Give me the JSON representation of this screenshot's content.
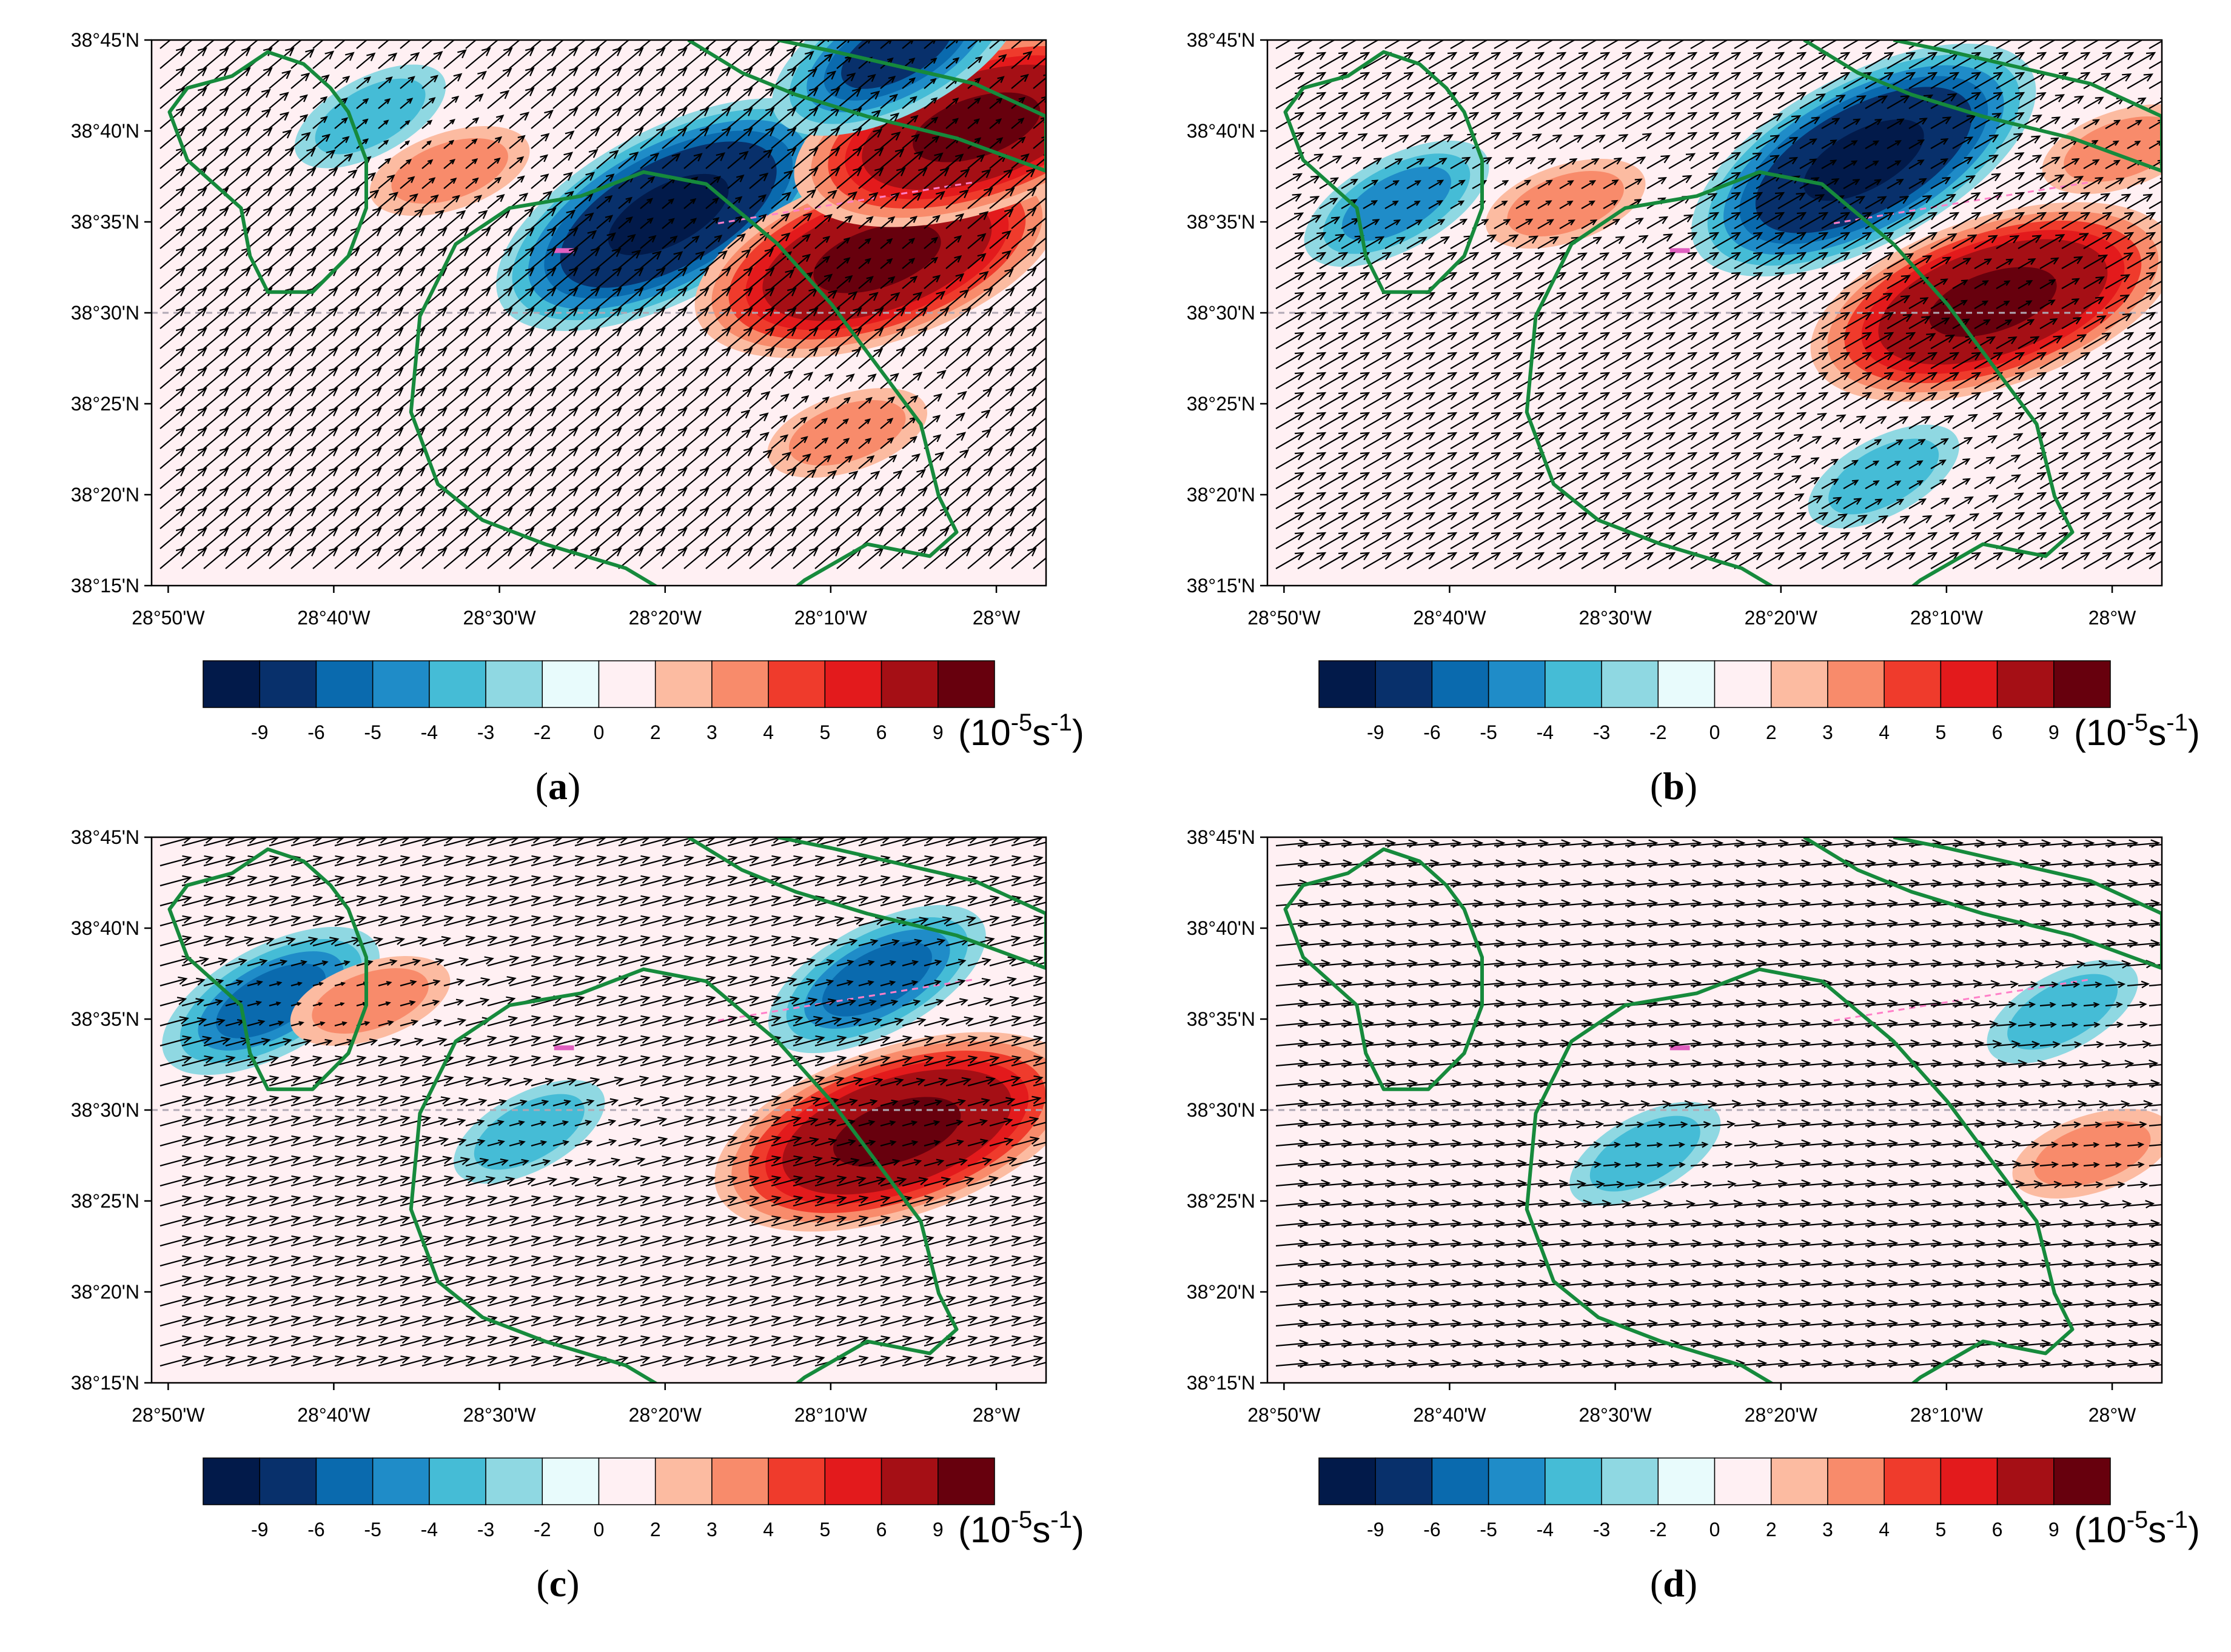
{
  "figure": {
    "colorbar": {
      "colors": [
        "#021a4a",
        "#08306b",
        "#0a6aae",
        "#1f8cc8",
        "#45bcd6",
        "#8fd8e2",
        "#e8fbfc",
        "#fff0f3",
        "#fcbba1",
        "#f88b6b",
        "#ef3b2c",
        "#e31a1c",
        "#a50f15",
        "#67000d"
      ],
      "tick_labels": [
        "-9",
        "-6",
        "-5",
        "-4",
        "-3",
        "-2",
        "0",
        "2",
        "3",
        "4",
        "5",
        "6",
        "9"
      ],
      "unit": "(10-5s-1)",
      "unit_base": "(10",
      "unit_exp1": "-5",
      "unit_mid": "s",
      "unit_exp2": "-1",
      "unit_close": ")"
    },
    "axes": {
      "lon_ticks": [
        "28°50'W",
        "28°40'W",
        "28°30'W",
        "28°20'W",
        "28°10'W",
        "28°W"
      ],
      "lat_ticks": [
        "38°45'N",
        "38°40'N",
        "38°35'N",
        "38°30'N",
        "38°25'N",
        "38°20'N",
        "38°15'N"
      ]
    },
    "colors": {
      "coast": "#168a3c",
      "arrow": "#000000",
      "ref_line": "#b0a8b4",
      "pink_line": "#ff7fc8",
      "background_field": "#fff0f3"
    }
  },
  "chart_data": [
    {
      "type": "heatmap",
      "caption": "(a)",
      "x_range": [
        -28.85,
        -27.95
      ],
      "y_range": [
        38.25,
        38.75
      ],
      "field": "vorticity (10^-5 s^-1) with wind vectors",
      "wind_direction_deg": 40,
      "features": [
        {
          "sign": "negative",
          "lon": -28.33,
          "lat": 38.59,
          "peak": -9
        },
        {
          "sign": "positive",
          "lon": -28.12,
          "lat": 38.55,
          "peak": 9
        },
        {
          "sign": "positive",
          "lon": -28.02,
          "lat": 38.67,
          "peak": 9
        },
        {
          "sign": "negative",
          "lon": -28.1,
          "lat": 38.74,
          "peak": -6
        },
        {
          "sign": "positive",
          "lon": -28.55,
          "lat": 38.63,
          "peak": 3
        },
        {
          "sign": "negative",
          "lon": -28.63,
          "lat": 38.68,
          "peak": -3
        },
        {
          "sign": "positive",
          "lon": -28.15,
          "lat": 38.39,
          "peak": 3
        }
      ]
    },
    {
      "type": "heatmap",
      "caption": "(b)",
      "x_range": [
        -28.85,
        -27.95
      ],
      "y_range": [
        38.25,
        38.75
      ],
      "field": "vorticity (10^-5 s^-1) with wind vectors",
      "wind_direction_deg": 30,
      "features": [
        {
          "sign": "negative",
          "lon": -28.25,
          "lat": 38.64,
          "peak": -9
        },
        {
          "sign": "positive",
          "lon": -28.12,
          "lat": 38.51,
          "peak": 9
        },
        {
          "sign": "negative",
          "lon": -28.72,
          "lat": 38.6,
          "peak": -4
        },
        {
          "sign": "positive",
          "lon": -28.55,
          "lat": 38.6,
          "peak": 3
        },
        {
          "sign": "negative",
          "lon": -28.23,
          "lat": 38.35,
          "peak": -3
        },
        {
          "sign": "positive",
          "lon": -27.99,
          "lat": 38.65,
          "peak": 3
        }
      ]
    },
    {
      "type": "heatmap",
      "caption": "(c)",
      "x_range": [
        -28.85,
        -27.95
      ],
      "y_range": [
        38.25,
        38.75
      ],
      "field": "vorticity (10^-5 s^-1) with wind vectors",
      "wind_direction_deg": 15,
      "features": [
        {
          "sign": "negative",
          "lon": -28.12,
          "lat": 38.62,
          "peak": -5
        },
        {
          "sign": "positive",
          "lon": -28.1,
          "lat": 38.48,
          "peak": 9
        },
        {
          "sign": "negative",
          "lon": -28.73,
          "lat": 38.6,
          "peak": -5
        },
        {
          "sign": "positive",
          "lon": -28.63,
          "lat": 38.6,
          "peak": 3
        },
        {
          "sign": "negative",
          "lon": -28.47,
          "lat": 38.48,
          "peak": -3
        }
      ]
    },
    {
      "type": "heatmap",
      "caption": "(d)",
      "x_range": [
        -28.85,
        -27.95
      ],
      "y_range": [
        38.25,
        38.75
      ],
      "field": "vorticity (10^-5 s^-1) with wind vectors",
      "wind_direction_deg": 5,
      "features": [
        {
          "sign": "negative",
          "lon": -28.05,
          "lat": 38.59,
          "peak": -3
        },
        {
          "sign": "positive",
          "lon": -28.02,
          "lat": 38.46,
          "peak": 3
        },
        {
          "sign": "negative",
          "lon": -28.47,
          "lat": 38.46,
          "peak": -3
        }
      ]
    }
  ]
}
